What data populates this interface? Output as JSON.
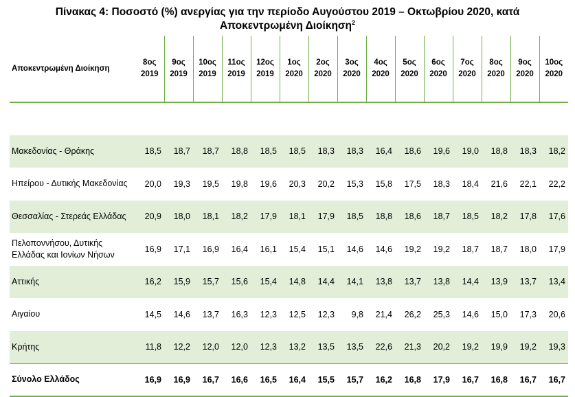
{
  "title_line1": "Πίνακας 4: Ποσοστό (%) ανεργίας για την περίοδο Αυγούστου 2019 – Οκτωβρίου 2020, κατά",
  "title_line2": "Αποκεντρωμένη Διοίκηση",
  "title_sup": "2",
  "colors": {
    "accent": "#70ad47",
    "shade": "#e2eed8"
  },
  "table": {
    "region_header": "Αποκεντρωμένη Διοίκηση",
    "periods": [
      {
        "m": "8ος",
        "y": "2019"
      },
      {
        "m": "9ος",
        "y": "2019"
      },
      {
        "m": "10ος",
        "y": "2019"
      },
      {
        "m": "11ος",
        "y": "2019"
      },
      {
        "m": "12ος",
        "y": "2019"
      },
      {
        "m": "1ος",
        "y": "2020"
      },
      {
        "m": "2ος",
        "y": "2020"
      },
      {
        "m": "3ος",
        "y": "2020"
      },
      {
        "m": "4ος",
        "y": "2020"
      },
      {
        "m": "5ος",
        "y": "2020"
      },
      {
        "m": "6ος",
        "y": "2020"
      },
      {
        "m": "7ος",
        "y": "2020"
      },
      {
        "m": "8ος",
        "y": "2020"
      },
      {
        "m": "9ος",
        "y": "2020"
      },
      {
        "m": "10ος",
        "y": "2020"
      }
    ],
    "rows": [
      {
        "name": "Μακεδονίας - Θράκης",
        "shaded": true,
        "values": [
          "18,5",
          "18,7",
          "18,7",
          "18,8",
          "18,5",
          "18,5",
          "18,3",
          "18,3",
          "16,4",
          "18,6",
          "19,6",
          "19,0",
          "18,8",
          "18,3",
          "18,2"
        ]
      },
      {
        "name": "Ηπείρου - Δυτικής Μακεδονίας",
        "shaded": false,
        "values": [
          "20,0",
          "19,3",
          "19,5",
          "19,8",
          "19,6",
          "20,3",
          "20,2",
          "15,3",
          "15,8",
          "17,5",
          "18,3",
          "18,4",
          "21,6",
          "22,1",
          "22,2"
        ]
      },
      {
        "name": "Θεσσαλίας - Στερεάς Ελλάδας",
        "shaded": true,
        "values": [
          "20,9",
          "18,0",
          "18,1",
          "18,2",
          "17,9",
          "18,1",
          "17,9",
          "18,5",
          "18,8",
          "18,6",
          "18,7",
          "18,5",
          "18,2",
          "17,8",
          "17,6"
        ]
      },
      {
        "name": "Πελοποννήσου, Δυτικής Ελλάδας και Ιονίων Νήσων",
        "shaded": false,
        "values": [
          "16,9",
          "17,1",
          "16,9",
          "16,4",
          "16,1",
          "15,4",
          "15,1",
          "14,6",
          "14,6",
          "19,2",
          "19,2",
          "18,7",
          "18,7",
          "18,0",
          "17,9"
        ]
      },
      {
        "name": "Αττικής",
        "shaded": true,
        "values": [
          "16,2",
          "15,9",
          "15,7",
          "15,6",
          "15,4",
          "14,8",
          "14,4",
          "14,1",
          "13,8",
          "13,7",
          "13,8",
          "14,4",
          "13,9",
          "13,7",
          "13,4"
        ]
      },
      {
        "name": "Αιγαίου",
        "shaded": false,
        "values": [
          "14,5",
          "14,6",
          "13,7",
          "16,3",
          "12,3",
          "12,5",
          "12,3",
          "9,8",
          "21,4",
          "26,2",
          "25,3",
          "14,6",
          "15,0",
          "17,3",
          "20,6"
        ]
      },
      {
        "name": "Κρήτης",
        "shaded": true,
        "values": [
          "11,8",
          "12,2",
          "12,0",
          "12,0",
          "12,3",
          "13,2",
          "13,5",
          "13,5",
          "22,6",
          "21,3",
          "20,2",
          "19,2",
          "19,9",
          "19,2",
          "19,3"
        ]
      }
    ],
    "total": {
      "name": "Σύνολο Ελλάδος",
      "values": [
        "16,9",
        "16,9",
        "16,7",
        "16,6",
        "16,5",
        "16,4",
        "15,5",
        "15,7",
        "16,2",
        "16,8",
        "17,9",
        "16,7",
        "16,8",
        "16,7",
        "16,7"
      ]
    }
  }
}
